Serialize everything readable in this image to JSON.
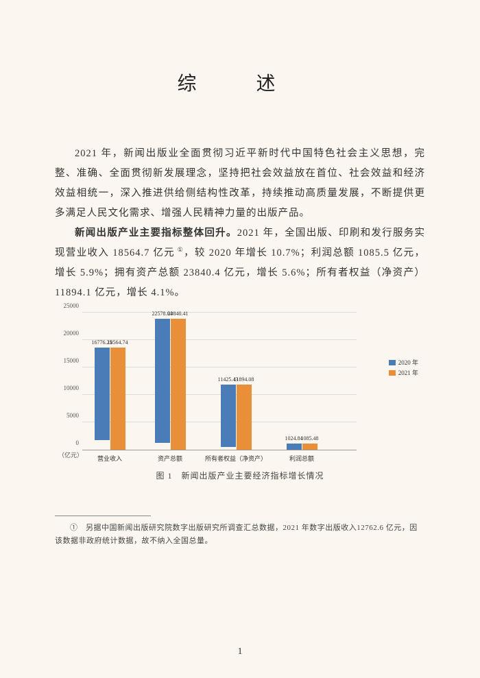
{
  "title": "综  述",
  "para1": "2021 年，新闻出版业全面贯彻习近平新时代中国特色社会主义思想，完整、准确、全面贯彻新发展理念，坚持把社会效益放在首位、社会效益和经济效益相统一，深入推进供给侧结构性改革，持续推动高质量发展，不断提供更多满足人民文化需求、增强人民精神力量的出版产品。",
  "para2_bold": "新闻出版产业主要指标整体回升。",
  "para2_rest_a": "2021 年，全国出版、印刷和发行服务实现营业收入 18564.7 亿元",
  "para2_sup": " ①",
  "para2_rest_b": "，较 2020 年增长 10.7%；利润总额 1085.5 亿元，增长 5.9%；拥有资产总额 23840.4 亿元，增长 5.6%；所有者权益（净资产）11894.1 亿元，增长 4.1%。",
  "chart": {
    "type": "bar",
    "ymax": 25000,
    "ytick_step": 5000,
    "yaxis_unit": "（亿元）",
    "categories": [
      "营业收入",
      "资产总额",
      "所有者权益（净资产）",
      "利润总额"
    ],
    "series": [
      {
        "name": "2020 年",
        "color": "#4a7db8",
        "values": [
          16776.25,
          22578.64,
          11425.43,
          1024.84
        ]
      },
      {
        "name": "2021 年",
        "color": "#e98f3a",
        "values": [
          18564.74,
          23840.41,
          11894.08,
          1085.48
        ]
      }
    ],
    "caption": "图 1　新闻出版产业主要经济指标增长情况",
    "background": "#fbf7f0",
    "grid_color": "#dddddd",
    "label_fontsize": 8
  },
  "footnote": "①　另据中国新闻出版研究院数字出版研究所调查汇总数据，2021 年数字出版收入12762.6 亿元，因该数据非政府统计数据，故不纳入全国总量。",
  "page_number": "1"
}
